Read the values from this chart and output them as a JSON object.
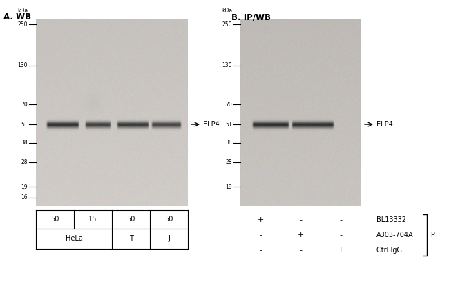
{
  "fig_width": 6.5,
  "fig_height": 4.34,
  "bg_color": "#ffffff",
  "panel_A": {
    "title": "A. WB",
    "gel_bg_light": "#d0ccc8",
    "gel_bg_dark": "#a8a49e",
    "mw_markers": [
      250,
      130,
      70,
      51,
      38,
      28,
      19,
      16
    ],
    "mw_kda": [
      250,
      130,
      70,
      51,
      38,
      28,
      19,
      16
    ],
    "band_label": "ELP4",
    "band_mw": 51,
    "kda_label": "kDa",
    "row1_labels": [
      "50",
      "15",
      "50",
      "50"
    ],
    "row2_labels": [
      "HeLa",
      "T",
      "J"
    ]
  },
  "panel_B": {
    "title": "B. IP/WB",
    "gel_bg_light": "#c8c4c0",
    "gel_bg_dark": "#a0a09c",
    "mw_markers": [
      250,
      130,
      70,
      51,
      38,
      28,
      19
    ],
    "mw_kda": [
      250,
      130,
      70,
      51,
      38,
      28,
      19
    ],
    "band_label": "ELP4",
    "band_mw": 51,
    "kda_label": "kDa",
    "ip_rows": [
      [
        "+",
        "-",
        "-",
        "BL13332"
      ],
      [
        "-",
        "+",
        "-",
        "A303-704A"
      ],
      [
        "-",
        "-",
        "+",
        "Ctrl IgG"
      ]
    ],
    "ip_bracket_label": "IP"
  }
}
